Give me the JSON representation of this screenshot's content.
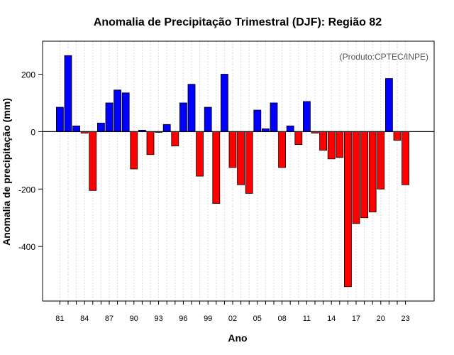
{
  "chart_data": {
    "type": "bar",
    "title": "Anomalia de Precipitação Trimestral (DJF): Região 82",
    "xlabel": "Ano",
    "ylabel": "Anomalia de precipitação (mm)",
    "annotation": "(Produto:CPTEC/INPE)",
    "ylim": [
      -590,
      315
    ],
    "yticks": [
      -400,
      -200,
      0,
      200
    ],
    "grid": "vertical dashed",
    "years": [
      1981,
      1982,
      1983,
      1984,
      1985,
      1986,
      1987,
      1988,
      1989,
      1990,
      1991,
      1992,
      1993,
      1994,
      1995,
      1996,
      1997,
      1998,
      1999,
      2000,
      2001,
      2002,
      2003,
      2004,
      2005,
      2006,
      2007,
      2008,
      2009,
      2010,
      2011,
      2012,
      2013,
      2014,
      2015,
      2016,
      2017,
      2018,
      2019,
      2020,
      2021,
      2022,
      2023
    ],
    "values": [
      85,
      265,
      20,
      -5,
      -205,
      30,
      100,
      145,
      135,
      -130,
      5,
      -80,
      0,
      25,
      -50,
      100,
      165,
      -155,
      85,
      -250,
      200,
      -125,
      -185,
      -215,
      75,
      10,
      100,
      -125,
      20,
      -45,
      105,
      -5,
      -65,
      -95,
      -90,
      -540,
      -320,
      -300,
      -280,
      -200,
      185,
      -30,
      -185
    ],
    "x_tick_labels": [
      "81",
      "84",
      "87",
      "90",
      "93",
      "96",
      "99",
      "02",
      "05",
      "08",
      "11",
      "14",
      "17",
      "20",
      "23"
    ],
    "colors": {
      "positive": "#0000ff",
      "negative": "#ff0000",
      "zero_line": "#000000"
    }
  }
}
